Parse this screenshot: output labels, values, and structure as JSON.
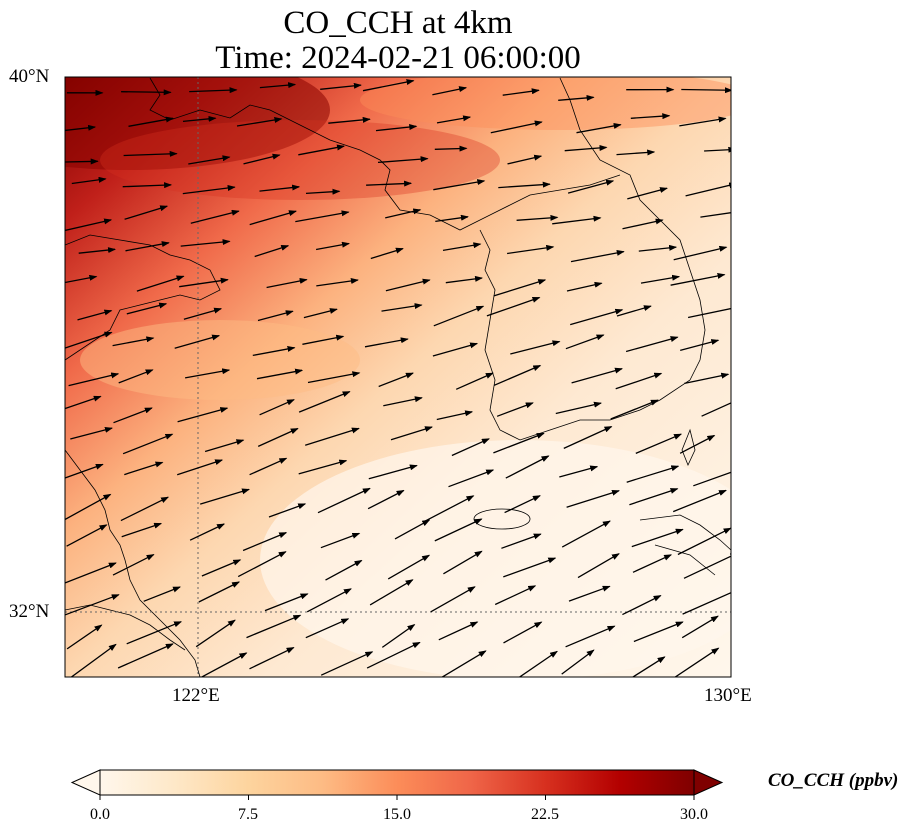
{
  "title": {
    "line1": "CO_CCH at 4km",
    "line2": "Time: 2024-02-21 06:00:00"
  },
  "map": {
    "lat_range": [
      31.0,
      40.0
    ],
    "lon_range": [
      120.0,
      130.0
    ],
    "lat_ticks": [
      {
        "value": 40,
        "label": "40°N"
      },
      {
        "value": 32,
        "label": "32°N"
      }
    ],
    "lon_ticks": [
      {
        "value": 122,
        "label": "122°E"
      },
      {
        "value": 130,
        "label": "130°E"
      }
    ],
    "gridlines": "dotted",
    "field": "CO_CCH concentration, highest in the northwest (Bohai / North China), decreasing toward the southeast",
    "wind_vectors": "westerly to west-southwesterly flow across the domain"
  },
  "colorbar": {
    "label": "CO_CCH (ppbv)",
    "ticks": [
      "0.0",
      "7.5",
      "15.0",
      "22.5",
      "30.0"
    ],
    "range": [
      0,
      30
    ],
    "colormap": [
      "#fff7ec",
      "#fee8c8",
      "#fdd49e",
      "#fdbb84",
      "#fc8d59",
      "#ef6548",
      "#d7301f",
      "#b30000",
      "#7f0000"
    ],
    "extend": "both"
  }
}
